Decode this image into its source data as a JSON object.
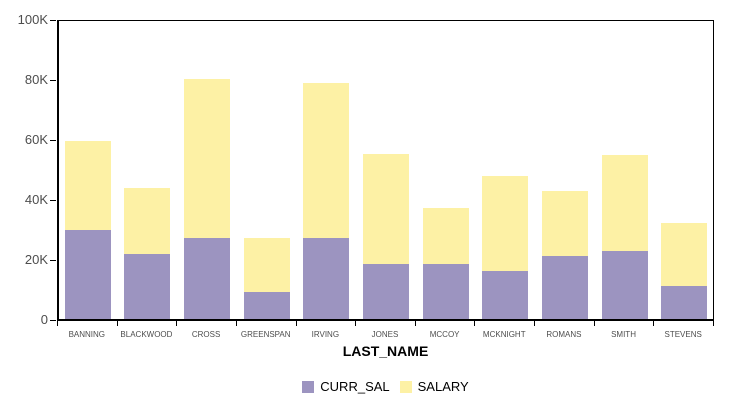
{
  "chart_data": {
    "type": "bar",
    "stacked": true,
    "title": "",
    "xlabel": "LAST_NAME",
    "ylabel": "",
    "categories": [
      "BANNING",
      "BLACKWOOD",
      "CROSS",
      "GREENSPAN",
      "IRVING",
      "JONES",
      "MCCOY",
      "MCKNIGHT",
      "ROMANS",
      "SMITH",
      "STEVENS"
    ],
    "series": [
      {
        "name": "CURR_SAL",
        "color": "#9c94c0",
        "values": [
          29750,
          21500,
          27000,
          9000,
          27000,
          18250,
          18250,
          16000,
          21000,
          22600,
          11000
        ]
      },
      {
        "name": "SALARY",
        "color": "#fdf1a5",
        "values": [
          29750,
          22000,
          53000,
          18000,
          51500,
          36500,
          18750,
          31500,
          21500,
          32150,
          21000
        ]
      }
    ],
    "stack_totals": [
      59500,
      43500,
      80000,
      27000,
      78500,
      54750,
      37000,
      47500,
      42500,
      54750,
      32000
    ],
    "y_ticks": [
      {
        "value": 0,
        "label": "0"
      },
      {
        "value": 20000,
        "label": "20K"
      },
      {
        "value": 40000,
        "label": "40K"
      },
      {
        "value": 60000,
        "label": "60K"
      },
      {
        "value": 80000,
        "label": "80K"
      },
      {
        "value": 100000,
        "label": "100K"
      }
    ],
    "ylim": [
      0,
      100000
    ],
    "grid": false,
    "legend_position": "bottom"
  },
  "colors": {
    "background": "#ffffff",
    "axis": "#000000",
    "tick_label": "#4d4d4d",
    "curr_sal": "#9c94c0",
    "salary": "#fdf1a5"
  }
}
